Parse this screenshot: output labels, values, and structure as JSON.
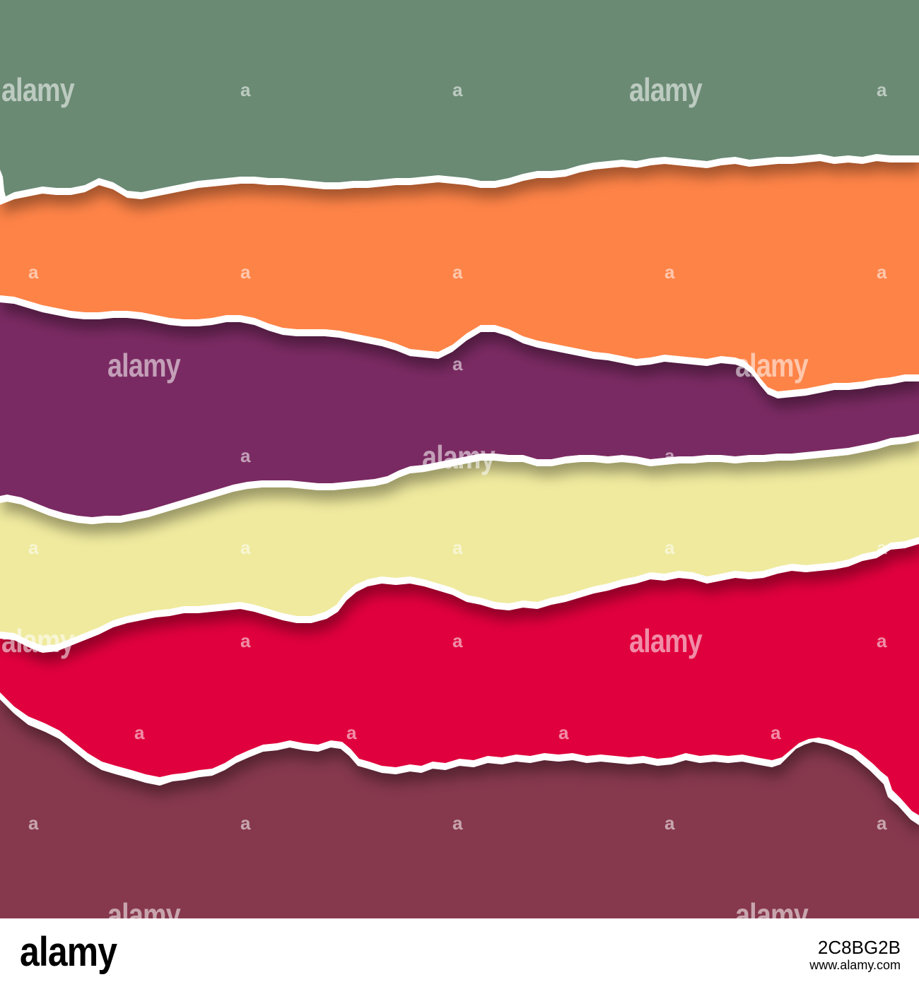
{
  "watermark": {
    "brand": "alamy",
    "mark": "a"
  },
  "footer": {
    "logo": "alamy",
    "image_id": "2C8BG2B",
    "url": "www.alamy.com"
  },
  "colors": {
    "green": "#6a8a73",
    "orange": "#fe8346",
    "purple": "#7a2b62",
    "cream": "#efea9e",
    "crimson": "#e0013d",
    "maroon": "#86384d",
    "paper_edge": "#ffffff"
  }
}
